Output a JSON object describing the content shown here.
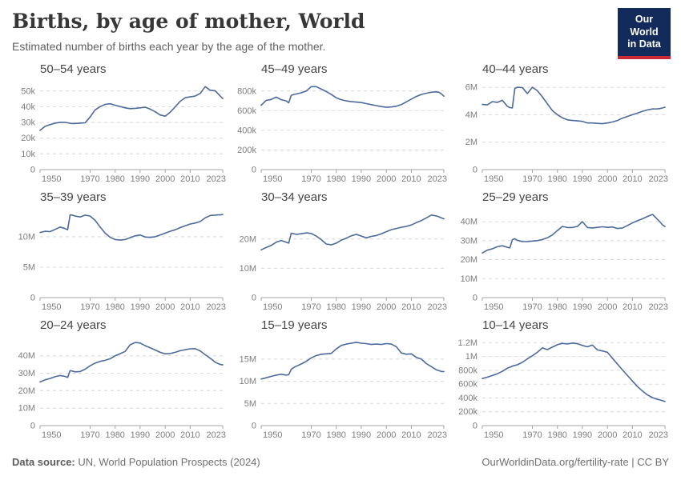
{
  "header": {
    "title": "Births, by age of mother, World",
    "subtitle": "Estimated number of births each year by the age of the mother.",
    "logo": {
      "line1": "Our World",
      "line2": "in Data"
    }
  },
  "footer": {
    "source_label": "Data source:",
    "source_text": "UN, World Population Prospects (2024)",
    "credit": "OurWorldinData.org/fertility-rate | CC BY"
  },
  "colors": {
    "line": "#4c6a9c",
    "grid": "#d9d9d9",
    "axis": "#a5a5a5",
    "tick_text": "#7e7e7e",
    "chart_title": "#454545",
    "logo_bg": "#122b5a",
    "logo_red": "#cc2936"
  },
  "chart_data": {
    "type": "line",
    "layout": "3x3-small-multiples",
    "x_years": [
      1950,
      1952,
      1954,
      1956,
      1958,
      1960,
      1961,
      1962,
      1963,
      1964,
      1966,
      1968,
      1970,
      1972,
      1974,
      1976,
      1978,
      1980,
      1982,
      1984,
      1986,
      1988,
      1990,
      1992,
      1994,
      1996,
      1998,
      2000,
      2002,
      2004,
      2006,
      2008,
      2010,
      2012,
      2014,
      2016,
      2018,
      2020,
      2021,
      2022,
      2023
    ],
    "xticks": [
      {
        "v": 1950,
        "label": "1950"
      },
      {
        "v": 1970,
        "label": "1970"
      },
      {
        "v": 1980,
        "label": "1980"
      },
      {
        "v": 1990,
        "label": "1990"
      },
      {
        "v": 2000,
        "label": "2000"
      },
      {
        "v": 2010,
        "label": "2010"
      },
      {
        "v": 2023,
        "label": "2023"
      }
    ],
    "charts": [
      {
        "title": "50–54 years",
        "ylim": [
          0,
          55000
        ],
        "yticks": [
          {
            "v": 0,
            "label": "0"
          },
          {
            "v": 10000,
            "label": "10k"
          },
          {
            "v": 20000,
            "label": "20k"
          },
          {
            "v": 30000,
            "label": "30k"
          },
          {
            "v": 40000,
            "label": "40k"
          },
          {
            "v": 50000,
            "label": "50k"
          }
        ],
        "values": [
          25000,
          27500,
          28600,
          29600,
          30100,
          30100,
          29800,
          29500,
          29300,
          29400,
          29600,
          29800,
          33500,
          38000,
          40100,
          41500,
          41900,
          41000,
          40200,
          39300,
          38800,
          39000,
          39300,
          39700,
          38500,
          36800,
          34800,
          34000,
          36500,
          40000,
          43500,
          45800,
          46300,
          46800,
          48500,
          52800,
          50500,
          50200,
          48500,
          46800,
          45200
        ]
      },
      {
        "title": "45–49 years",
        "ylim": [
          0,
          880000
        ],
        "yticks": [
          {
            "v": 0,
            "label": "0"
          },
          {
            "v": 200000,
            "label": "200k"
          },
          {
            "v": 400000,
            "label": "400k"
          },
          {
            "v": 600000,
            "label": "600k"
          },
          {
            "v": 800000,
            "label": "800k"
          }
        ],
        "values": [
          655000,
          705000,
          715000,
          738000,
          712000,
          700000,
          680000,
          755000,
          765000,
          770000,
          782000,
          800000,
          845000,
          845000,
          820000,
          795000,
          765000,
          732000,
          712000,
          700000,
          692000,
          688000,
          683000,
          672000,
          662000,
          652000,
          642000,
          635000,
          638000,
          645000,
          662000,
          690000,
          718000,
          745000,
          765000,
          778000,
          788000,
          792000,
          788000,
          772000,
          748000
        ]
      },
      {
        "title": "40–44 years",
        "ylim": [
          0,
          6300000
        ],
        "yticks": [
          {
            "v": 0,
            "label": "0"
          },
          {
            "v": 2000000,
            "label": "2M"
          },
          {
            "v": 4000000,
            "label": "4M"
          },
          {
            "v": 6000000,
            "label": "6M"
          }
        ],
        "values": [
          4750000,
          4720000,
          4950000,
          4900000,
          5050000,
          4620000,
          4520000,
          4500000,
          5920000,
          6000000,
          5980000,
          5550000,
          6000000,
          5750000,
          5300000,
          4800000,
          4300000,
          4000000,
          3780000,
          3630000,
          3580000,
          3550000,
          3520000,
          3400000,
          3400000,
          3370000,
          3350000,
          3400000,
          3470000,
          3580000,
          3750000,
          3880000,
          4000000,
          4120000,
          4250000,
          4350000,
          4420000,
          4430000,
          4450000,
          4500000,
          4550000
        ]
      },
      {
        "title": "35–39 years",
        "ylim": [
          0,
          14200000
        ],
        "yticks": [
          {
            "v": 0,
            "label": "0"
          },
          {
            "v": 5000000,
            "label": "5M"
          },
          {
            "v": 10000000,
            "label": "10M"
          }
        ],
        "values": [
          10700000,
          10900000,
          10850000,
          11200000,
          11600000,
          11350000,
          11150000,
          13600000,
          13550000,
          13400000,
          13250000,
          13550000,
          13400000,
          12700000,
          11600000,
          10600000,
          9900000,
          9550000,
          9450000,
          9550000,
          9850000,
          10150000,
          10300000,
          9950000,
          9900000,
          10000000,
          10300000,
          10600000,
          10900000,
          11150000,
          11500000,
          11800000,
          12100000,
          12250000,
          12500000,
          13100000,
          13500000,
          13550000,
          13600000,
          13600000,
          13650000
        ]
      },
      {
        "title": "30–34 years",
        "ylim": [
          0,
          29500000
        ],
        "yticks": [
          {
            "v": 0,
            "label": "0"
          },
          {
            "v": 10000000,
            "label": "10M"
          },
          {
            "v": 20000000,
            "label": "20M"
          }
        ],
        "values": [
          16300000,
          17100000,
          17800000,
          18900000,
          19500000,
          18900000,
          18600000,
          22000000,
          21800000,
          21600000,
          21800000,
          22100000,
          21900000,
          21000000,
          19800000,
          18300000,
          18000000,
          18600000,
          19600000,
          20300000,
          21100000,
          21600000,
          21000000,
          20400000,
          20900000,
          21200000,
          21800000,
          22500000,
          23200000,
          23600000,
          24000000,
          24300000,
          24800000,
          25600000,
          26300000,
          27200000,
          28200000,
          27900000,
          27600000,
          27200000,
          26900000
        ]
      },
      {
        "title": "25–29 years",
        "ylim": [
          0,
          45500000
        ],
        "yticks": [
          {
            "v": 0,
            "label": "0"
          },
          {
            "v": 10000000,
            "label": "10M"
          },
          {
            "v": 20000000,
            "label": "20M"
          },
          {
            "v": 30000000,
            "label": "30M"
          },
          {
            "v": 40000000,
            "label": "40M"
          }
        ],
        "values": [
          23500000,
          25000000,
          25700000,
          26800000,
          27300000,
          26500000,
          26200000,
          30500000,
          31000000,
          30200000,
          29500000,
          29500000,
          29800000,
          30000000,
          30600000,
          31500000,
          33000000,
          35300000,
          37500000,
          36900000,
          36900000,
          37500000,
          40000000,
          36900000,
          36700000,
          37000000,
          37300000,
          37000000,
          37200000,
          36400000,
          36600000,
          38000000,
          39300000,
          40500000,
          41500000,
          42700000,
          43800000,
          41200000,
          39800000,
          38300000,
          37400000
        ]
      },
      {
        "title": "20–24 years",
        "ylim": [
          0,
          49500000
        ],
        "yticks": [
          {
            "v": 0,
            "label": "0"
          },
          {
            "v": 10000000,
            "label": "10M"
          },
          {
            "v": 20000000,
            "label": "20M"
          },
          {
            "v": 30000000,
            "label": "30M"
          },
          {
            "v": 40000000,
            "label": "40M"
          }
        ],
        "values": [
          25000000,
          26200000,
          27000000,
          28000000,
          28700000,
          28200000,
          27600000,
          31500000,
          31200000,
          30800000,
          31000000,
          32300000,
          34300000,
          35800000,
          36800000,
          37400000,
          38300000,
          40000000,
          41200000,
          42500000,
          46300000,
          47600000,
          47300000,
          45800000,
          44600000,
          43300000,
          42000000,
          41100000,
          41300000,
          42000000,
          42900000,
          43500000,
          44000000,
          44100000,
          42800000,
          40600000,
          38600000,
          36300000,
          35600000,
          35000000,
          34800000
        ]
      },
      {
        "title": "15–19 years",
        "ylim": [
          0,
          19500000
        ],
        "yticks": [
          {
            "v": 0,
            "label": "0"
          },
          {
            "v": 5000000,
            "label": "5M"
          },
          {
            "v": 10000000,
            "label": "10M"
          },
          {
            "v": 15000000,
            "label": "15M"
          }
        ],
        "values": [
          10500000,
          10800000,
          11100000,
          11400000,
          11600000,
          11400000,
          11500000,
          12700000,
          13100000,
          13400000,
          13900000,
          14500000,
          15300000,
          15800000,
          16100000,
          16200000,
          16300000,
          17300000,
          18100000,
          18400000,
          18600000,
          18800000,
          18600000,
          18500000,
          18300000,
          18400000,
          18300000,
          18500000,
          18400000,
          17800000,
          16400000,
          16100000,
          16200000,
          15400000,
          15000000,
          14000000,
          13300000,
          12600000,
          12400000,
          12200000,
          12200000
        ]
      },
      {
        "title": "10–14 years",
        "ylim": [
          0,
          1250000
        ],
        "yticks": [
          {
            "v": 0,
            "label": "0"
          },
          {
            "v": 200000,
            "label": "200k"
          },
          {
            "v": 400000,
            "label": "400k"
          },
          {
            "v": 600000,
            "label": "600k"
          },
          {
            "v": 800000,
            "label": "800k"
          },
          {
            "v": 1000000,
            "label": "1M"
          },
          {
            "v": 1200000,
            "label": "1.2M"
          }
        ],
        "values": [
          680000,
          700000,
          725000,
          750000,
          785000,
          830000,
          845000,
          860000,
          870000,
          880000,
          915000,
          965000,
          1010000,
          1060000,
          1125000,
          1100000,
          1135000,
          1170000,
          1190000,
          1180000,
          1195000,
          1185000,
          1160000,
          1140000,
          1165000,
          1095000,
          1080000,
          1060000,
          975000,
          890000,
          805000,
          725000,
          645000,
          565000,
          500000,
          445000,
          405000,
          380000,
          372000,
          360000,
          350000
        ]
      }
    ]
  }
}
